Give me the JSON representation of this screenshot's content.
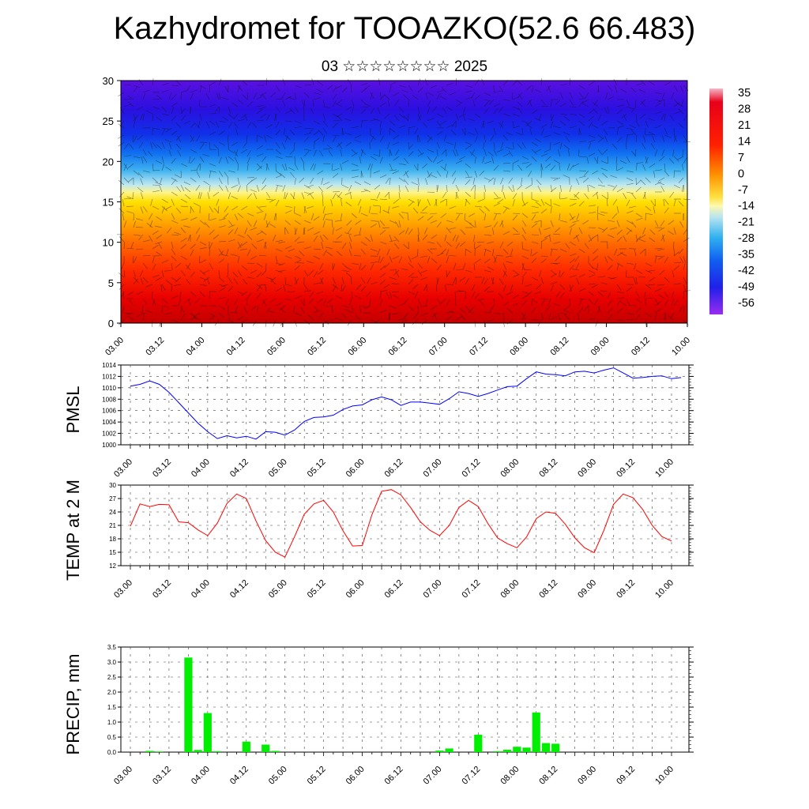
{
  "title": "Kazhydromet for TOOAZKO(52.6 66.483)",
  "subtitle": "03 ☆☆☆☆☆☆☆☆ 2025",
  "x_ticks": [
    "03.00",
    "03.12",
    "04.00",
    "04.12",
    "05.00",
    "05.12",
    "06.00",
    "06.12",
    "07.00",
    "07.12",
    "08.00",
    "08.12",
    "09.00",
    "09.12",
    "10.00"
  ],
  "colors": {
    "pmsl_line": "#0000ff",
    "temp_line": "#ff0000",
    "precip_bar": "#00ee00",
    "colorbar_top": "#f4b8c8",
    "colorbar_bottom": "#9a2cf0"
  },
  "chart_data": [
    {
      "type": "heatmap",
      "title": "",
      "y_ticks": [
        "0",
        "5",
        "10",
        "15",
        "20",
        "25",
        "30"
      ],
      "ylim": [
        0,
        30
      ],
      "colorbar_labels": [
        "35",
        "28",
        "21",
        "14",
        "7",
        "0",
        "-7",
        "-14",
        "-21",
        "-28",
        "-35",
        "-42",
        "-49",
        "-56"
      ],
      "overlay": "wind barbs"
    },
    {
      "type": "line",
      "ylabel": "PMSL",
      "ylim": [
        1000,
        1014
      ],
      "y_ticks": [
        "1014",
        "1012",
        "1010",
        "1008",
        "1006",
        "1004",
        "1002",
        "1000"
      ],
      "grid": true,
      "series": [
        {
          "values": [
            1010.3,
            1010.6,
            1011.2,
            1010.6,
            1009.2,
            1007.4,
            1005.6,
            1003.8,
            1002.3,
            1001.1,
            1001.6,
            1001.2,
            1001.5,
            1001.0,
            1002.3,
            1002.2,
            1001.7,
            1002.6,
            1004.1,
            1004.8,
            1004.9,
            1005.2,
            1006.2,
            1006.8,
            1007.0,
            1007.9,
            1008.4,
            1007.9,
            1006.9,
            1007.5,
            1007.5,
            1007.3,
            1007.1,
            1008.1,
            1009.3,
            1009.0,
            1008.5,
            1009.0,
            1009.6,
            1010.2,
            1010.3,
            1011.6,
            1012.8,
            1012.4,
            1012.3,
            1012.1,
            1012.8,
            1012.9,
            1012.6,
            1013.1,
            1013.5,
            1012.6,
            1011.7,
            1011.8,
            1012.0,
            1012.1,
            1011.6,
            1011.8
          ]
        }
      ]
    },
    {
      "type": "line",
      "ylabel": "TEMP at 2 M",
      "ylim": [
        12,
        30
      ],
      "y_ticks": [
        "30",
        "27",
        "24",
        "21",
        "18",
        "15",
        "12"
      ],
      "grid": true,
      "series": [
        {
          "values": [
            20.8,
            25.8,
            25.2,
            25.7,
            25.6,
            21.8,
            21.6,
            20.0,
            18.7,
            21.5,
            25.9,
            28.0,
            27.0,
            22.0,
            17.6,
            15.0,
            13.9,
            18.5,
            23.5,
            25.8,
            26.6,
            24.0,
            19.8,
            16.4,
            16.5,
            23.4,
            28.6,
            29.0,
            27.8,
            25.0,
            21.8,
            19.9,
            18.7,
            21.0,
            25.0,
            26.6,
            25.2,
            21.4,
            18.2,
            16.9,
            16.0,
            18.4,
            22.5,
            24.0,
            23.7,
            21.3,
            18.2,
            16.0,
            14.9,
            19.9,
            25.7,
            28.0,
            27.2,
            24.6,
            21.0,
            18.5,
            17.5
          ]
        }
      ]
    },
    {
      "type": "bar",
      "ylabel": "PRECIP, mm",
      "ylim": [
        0,
        3.5
      ],
      "y_ticks": [
        "3.5",
        "3.0",
        "2.5",
        "2.0",
        "1.5",
        "1.0",
        "0.5",
        "0.0"
      ],
      "grid": true,
      "x": [
        2,
        3,
        6,
        7,
        8,
        9,
        12,
        14,
        15,
        32,
        33,
        36,
        38,
        39,
        40,
        41,
        42,
        43,
        44
      ],
      "values": [
        0.04,
        0.02,
        3.15,
        0.07,
        1.3,
        0.03,
        0.35,
        0.25,
        0.04,
        0.05,
        0.12,
        0.58,
        0.03,
        0.08,
        0.18,
        0.15,
        1.32,
        0.3,
        0.28
      ]
    }
  ]
}
